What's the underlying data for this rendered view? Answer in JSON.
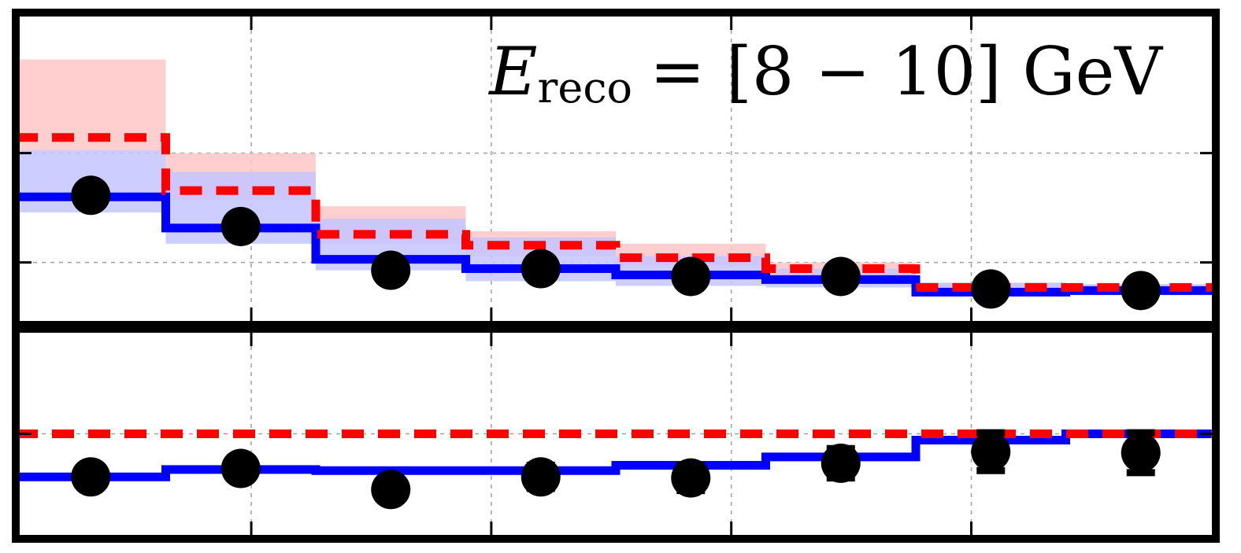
{
  "colors": {
    "model_blue": "#0000ff",
    "model_red": "#ff0000",
    "band_blue": "#c4c4ff",
    "band_red": "#ffc6c6",
    "data_black": "#000000",
    "grid": "#a0a0a0"
  },
  "chart_data": [
    {
      "type": "line",
      "title": "",
      "annotation": {
        "symbol": "E",
        "subscript": "reco",
        "text": "= [8 − 10] GeV"
      },
      "xlabel": "",
      "ylabel": "",
      "xlim": [
        0,
        8
      ],
      "ylim": [
        0,
        10
      ],
      "grid": true,
      "x_edges": [
        0,
        1,
        2,
        3,
        4,
        5,
        6,
        7,
        8
      ],
      "series": [
        {
          "style": "step-solid-blue",
          "values": [
            4.1,
            3.1,
            2.1,
            1.8,
            1.6,
            1.45,
            1.05,
            1.1
          ],
          "band": [
            [
              3.6,
              5.6
            ],
            [
              2.6,
              4.9
            ],
            [
              1.75,
              3.4
            ],
            [
              1.4,
              2.8
            ],
            [
              1.25,
              2.2
            ],
            [
              1.2,
              1.8
            ],
            [
              0.95,
              1.35
            ],
            [
              0.95,
              1.3
            ]
          ]
        },
        {
          "style": "step-dashed-red",
          "values": [
            6.0,
            4.3,
            2.9,
            2.55,
            2.15,
            1.8,
            1.2,
            1.2
          ],
          "band": [
            [
              5.6,
              8.5
            ],
            [
              4.0,
              5.5
            ],
            [
              2.6,
              3.8
            ],
            [
              2.2,
              3.0
            ],
            [
              1.9,
              2.6
            ],
            [
              1.6,
              2.0
            ],
            [
              1.1,
              1.35
            ],
            [
              1.1,
              1.3
            ]
          ]
        },
        {
          "style": "points-black",
          "x": [
            0.5,
            1.5,
            2.5,
            3.5,
            4.5,
            5.5,
            6.5,
            7.5
          ],
          "values": [
            4.15,
            3.15,
            1.75,
            1.8,
            1.55,
            1.55,
            1.15,
            1.1
          ]
        }
      ]
    },
    {
      "type": "line",
      "xlabel": "",
      "ylabel": "",
      "xlim": [
        0,
        8
      ],
      "ylim": [
        0,
        10
      ],
      "grid": true,
      "x_edges": [
        0,
        1,
        2,
        3,
        4,
        5,
        6,
        7,
        8
      ],
      "series": [
        {
          "style": "step-solid-blue",
          "values": [
            2.95,
            3.3,
            3.25,
            3.25,
            3.5,
            3.9,
            4.7,
            5.0
          ]
        },
        {
          "style": "dashed-red-reference",
          "values": [
            5.0,
            5.0,
            5.0,
            5.0,
            5.0,
            5.0,
            5.0,
            5.0
          ]
        },
        {
          "style": "points-black",
          "x": [
            0.5,
            1.5,
            2.5,
            3.5,
            4.5,
            5.5,
            6.5,
            7.5
          ],
          "values": [
            2.95,
            3.35,
            2.35,
            2.95,
            2.9,
            3.6,
            4.15,
            4.1
          ],
          "yerr": [
            0.2,
            0.25,
            0.35,
            0.55,
            0.6,
            0.7,
            0.9,
            0.95
          ]
        }
      ]
    }
  ]
}
